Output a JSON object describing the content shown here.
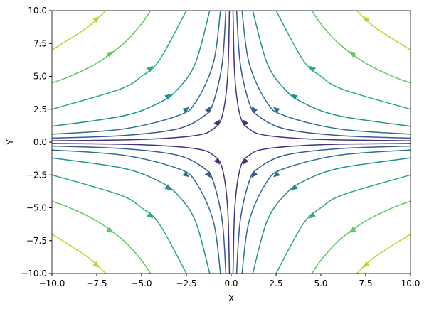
{
  "chart_data": {
    "type": "streamplot",
    "xlabel": "X",
    "ylabel": "Y",
    "xlim": [
      -10,
      10
    ],
    "ylim": [
      -10,
      10
    ],
    "xticks": [
      {
        "value": -10,
        "label": "−10.0"
      },
      {
        "value": -7.5,
        "label": "−7.5"
      },
      {
        "value": -5,
        "label": "−5.0"
      },
      {
        "value": -2.5,
        "label": "−2.5"
      },
      {
        "value": 0,
        "label": "0.0"
      },
      {
        "value": 2.5,
        "label": "2.5"
      },
      {
        "value": 5,
        "label": "5.0"
      },
      {
        "value": 7.5,
        "label": "7.5"
      },
      {
        "value": 10,
        "label": "10.0"
      }
    ],
    "yticks": [
      {
        "value": -10,
        "label": "−10.0"
      },
      {
        "value": -7.5,
        "label": "−7.5"
      },
      {
        "value": -5,
        "label": "−5.0"
      },
      {
        "value": -2.5,
        "label": "−2.5"
      },
      {
        "value": 0,
        "label": "0.0"
      },
      {
        "value": 2.5,
        "label": "2.5"
      },
      {
        "value": 5,
        "label": "5.0"
      },
      {
        "value": 7.5,
        "label": "7.5"
      },
      {
        "value": 10,
        "label": "10.0"
      }
    ],
    "streamlines": [
      {
        "color": "#46327e",
        "x": [
          10,
          5,
          2,
          1,
          0.5,
          0.2,
          0.1
        ],
        "y": [
          0.1,
          0.2,
          0.5,
          1,
          2,
          5,
          10
        ]
      },
      {
        "color": "#46327e",
        "x": [
          -10,
          -5,
          -2,
          -1,
          -0.5,
          -0.2,
          -0.1
        ],
        "y": [
          0.1,
          0.2,
          0.5,
          1,
          2,
          5,
          10
        ]
      },
      {
        "color": "#46327e",
        "x": [
          -10,
          -5,
          -2,
          -1,
          -0.5,
          -0.2,
          -0.1
        ],
        "y": [
          -0.1,
          -0.2,
          -0.5,
          -1,
          -2,
          -5,
          -10
        ]
      },
      {
        "color": "#46327e",
        "x": [
          10,
          5,
          2,
          1,
          0.5,
          0.2,
          0.1
        ],
        "y": [
          -0.1,
          -0.2,
          -0.5,
          -1,
          -2,
          -5,
          -10
        ]
      },
      {
        "color": "#365c8d",
        "x": [
          10,
          6,
          3,
          1.5,
          1,
          0.5,
          0.3
        ],
        "y": [
          0.3,
          0.5,
          1,
          2,
          3,
          6,
          10
        ]
      },
      {
        "color": "#365c8d",
        "x": [
          -10,
          -6,
          -3,
          -1.5,
          -1,
          -0.5,
          -0.3
        ],
        "y": [
          0.3,
          0.5,
          1,
          2,
          3,
          6,
          10
        ]
      },
      {
        "color": "#365c8d",
        "x": [
          -10,
          -6,
          -3,
          -1.5,
          -1,
          -0.5,
          -0.3
        ],
        "y": [
          -0.3,
          -0.5,
          -1,
          -2,
          -3,
          -6,
          -10
        ]
      },
      {
        "color": "#365c8d",
        "x": [
          10,
          6,
          3,
          1.5,
          1,
          0.5,
          0.3
        ],
        "y": [
          -0.3,
          -0.5,
          -1,
          -2,
          -3,
          -6,
          -10
        ]
      },
      {
        "color": "#2c728e",
        "x": [
          10,
          6,
          3,
          2,
          1,
          0.6
        ],
        "y": [
          0.6,
          1,
          2,
          3,
          6,
          10
        ]
      },
      {
        "color": "#2c728e",
        "x": [
          -10,
          -6,
          -3,
          -2,
          -1,
          -0.6
        ],
        "y": [
          0.6,
          1,
          2,
          3,
          6,
          10
        ]
      },
      {
        "color": "#2c728e",
        "x": [
          -10,
          -6,
          -3,
          -2,
          -1,
          -0.6
        ],
        "y": [
          -0.6,
          -1,
          -2,
          -3,
          -6,
          -10
        ]
      },
      {
        "color": "#2c728e",
        "x": [
          10,
          6,
          3,
          2,
          1,
          0.6
        ],
        "y": [
          -0.6,
          -1,
          -2,
          -3,
          -6,
          -10
        ]
      },
      {
        "color": "#21918c",
        "x": [
          10,
          6,
          4,
          3,
          2,
          1.2
        ],
        "y": [
          1.2,
          2,
          3,
          4,
          6,
          10
        ]
      },
      {
        "color": "#21918c",
        "x": [
          -10,
          -6,
          -4,
          -3,
          -2,
          -1.2
        ],
        "y": [
          1.2,
          2,
          3,
          4,
          6,
          10
        ]
      },
      {
        "color": "#21918c",
        "x": [
          -10,
          -6,
          -4,
          -3,
          -2,
          -1.2
        ],
        "y": [
          -1.2,
          -2,
          -3,
          -4,
          -6,
          -10
        ]
      },
      {
        "color": "#21918c",
        "x": [
          10,
          6,
          4,
          3,
          2,
          1.2
        ],
        "y": [
          -1.2,
          -2,
          -3,
          -4,
          -6,
          -10
        ]
      },
      {
        "color": "#28ae80",
        "x": [
          10,
          6.25,
          5,
          4,
          2.5
        ],
        "y": [
          2.5,
          4,
          5,
          6.25,
          10
        ]
      },
      {
        "color": "#28ae80",
        "x": [
          -10,
          -6.25,
          -5,
          -4,
          -2.5
        ],
        "y": [
          2.5,
          4,
          5,
          6.25,
          10
        ]
      },
      {
        "color": "#28ae80",
        "x": [
          -10,
          -6.25,
          -5,
          -4,
          -2.5
        ],
        "y": [
          -2.5,
          -4,
          -5,
          -6.25,
          -10
        ]
      },
      {
        "color": "#28ae80",
        "x": [
          10,
          6.25,
          5,
          4,
          2.5
        ],
        "y": [
          -2.5,
          -4,
          -5,
          -6.25,
          -10
        ]
      },
      {
        "color": "#5ec962",
        "x": [
          10,
          9,
          7.5,
          6,
          5,
          4.5
        ],
        "y": [
          4.5,
          5,
          6,
          7.5,
          9,
          10
        ]
      },
      {
        "color": "#5ec962",
        "x": [
          -10,
          -9,
          -7.5,
          -6,
          -5,
          -4.5
        ],
        "y": [
          4.5,
          5,
          6,
          7.5,
          9,
          10
        ]
      },
      {
        "color": "#5ec962",
        "x": [
          -10,
          -9,
          -7.5,
          -6,
          -5,
          -4.5
        ],
        "y": [
          -4.5,
          -5,
          -6,
          -7.5,
          -9,
          -10
        ]
      },
      {
        "color": "#5ec962",
        "x": [
          10,
          9,
          7.5,
          6,
          5,
          4.5
        ],
        "y": [
          -4.5,
          -5,
          -6,
          -7.5,
          -9,
          -10
        ]
      },
      {
        "color": "#addc30",
        "x": [
          10,
          8,
          7
        ],
        "y": [
          7,
          8.75,
          10
        ]
      },
      {
        "color": "#addc30",
        "x": [
          -10,
          -8,
          -7
        ],
        "y": [
          7,
          8.75,
          10
        ]
      },
      {
        "color": "#addc30",
        "x": [
          -10,
          -8,
          -7
        ],
        "y": [
          -7,
          -8.75,
          -10
        ]
      },
      {
        "color": "#addc30",
        "x": [
          10,
          8,
          7
        ],
        "y": [
          -7,
          -8.75,
          -10
        ]
      }
    ]
  }
}
